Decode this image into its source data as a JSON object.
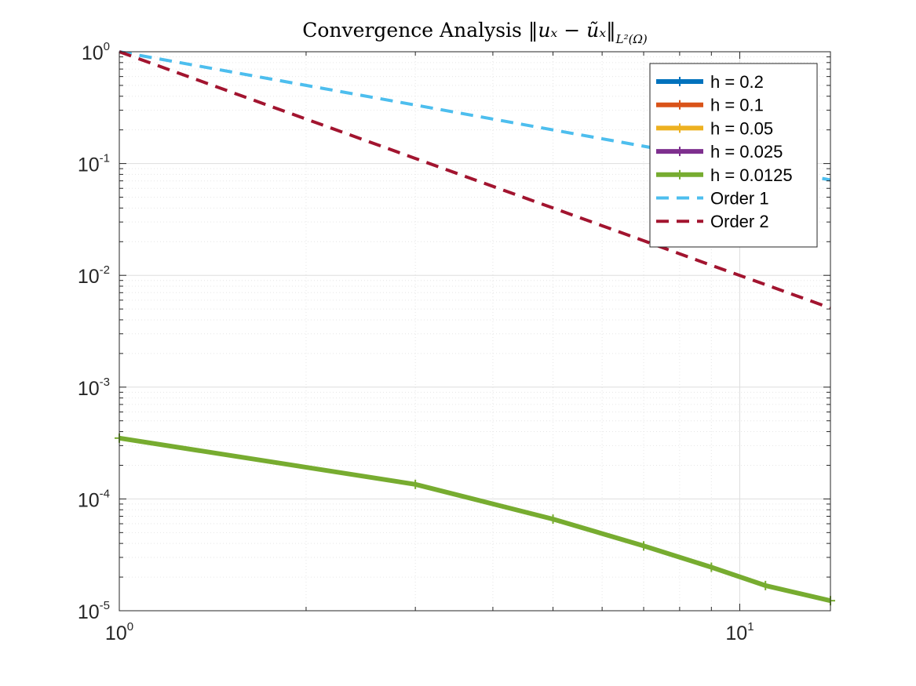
{
  "chart_data": {
    "type": "line",
    "title": {
      "prefix": "Convergence Analysis ",
      "math_main": "‖uₓ − ũₓ‖",
      "math_subscript": "L²(Ω)"
    },
    "xlabel": "",
    "ylabel": "",
    "xscale": "log",
    "yscale": "log",
    "xlim": [
      1,
      14
    ],
    "ylim": [
      1e-05,
      1
    ],
    "grid": "major-and-minor",
    "legend_position": "top-right",
    "x_ticks": [
      {
        "base": "10",
        "exp": "0",
        "value": 1
      },
      {
        "base": "10",
        "exp": "1",
        "value": 10
      }
    ],
    "y_ticks": [
      {
        "base": "10",
        "exp": "0",
        "value": 1
      },
      {
        "base": "10",
        "exp": "-1",
        "value": 0.1
      },
      {
        "base": "10",
        "exp": "-2",
        "value": 0.01
      },
      {
        "base": "10",
        "exp": "-3",
        "value": 0.001
      },
      {
        "base": "10",
        "exp": "-4",
        "value": 0.0001
      },
      {
        "base": "10",
        "exp": "-5",
        "value": 1e-05
      }
    ],
    "series": [
      {
        "name": "h = 0.2",
        "color": "#0072BD",
        "style": "solid-marker",
        "x": [],
        "y": []
      },
      {
        "name": "h = 0.1",
        "color": "#D95319",
        "style": "solid-marker",
        "x": [],
        "y": []
      },
      {
        "name": "h = 0.05",
        "color": "#EDB120",
        "style": "solid-marker",
        "x": [],
        "y": []
      },
      {
        "name": "h = 0.025",
        "color": "#7E2F8E",
        "style": "solid-marker",
        "x": [],
        "y": []
      },
      {
        "name": "h = 0.0125",
        "color": "#77AC30",
        "style": "solid-marker",
        "x": [
          1,
          3,
          5,
          7,
          9,
          11,
          14
        ],
        "y": [
          0.00035,
          0.000135,
          6.6e-05,
          3.8e-05,
          2.45e-05,
          1.68e-05,
          1.23e-05
        ]
      },
      {
        "name": "Order 1",
        "color": "#4DBEEE",
        "style": "dashed",
        "x": [
          1,
          3,
          5,
          7,
          9,
          11,
          14
        ],
        "y": [
          1,
          0.3333,
          0.2,
          0.1429,
          0.1111,
          0.0909,
          0.0714
        ]
      },
      {
        "name": "Order 2",
        "color": "#A2142F",
        "style": "dashed",
        "x": [
          1,
          3,
          5,
          7,
          9,
          11,
          14
        ],
        "y": [
          1,
          0.1111,
          0.04,
          0.0204,
          0.0123,
          0.00826,
          0.0051
        ]
      }
    ]
  }
}
